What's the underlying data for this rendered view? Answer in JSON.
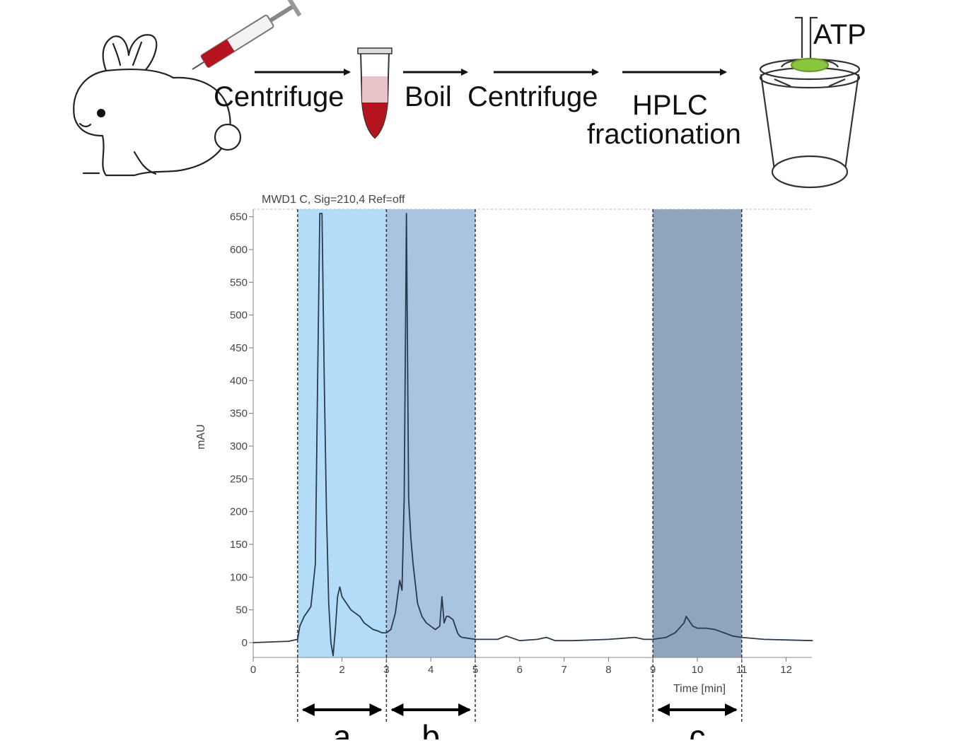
{
  "workflow": {
    "steps": [
      "Centrifuge",
      "Boil",
      "Centrifuge",
      "HPLC",
      "fractionation"
    ],
    "product_label": "ATP",
    "colors": {
      "blood": "#b3141e",
      "plasma": "#e8c4c8",
      "atp_green": "#8cc63f"
    }
  },
  "chart_data": {
    "type": "line",
    "title": "MWD1 C, Sig=210,4 Ref=off",
    "xlabel": "Time [min]",
    "ylabel": "mAU",
    "xlim": [
      0,
      12.6
    ],
    "ylim": [
      -20,
      655
    ],
    "x_ticks": [
      0,
      1,
      2,
      3,
      4,
      5,
      6,
      7,
      8,
      9,
      10,
      11,
      12
    ],
    "y_ticks": [
      0,
      50,
      100,
      150,
      200,
      250,
      300,
      350,
      400,
      450,
      500,
      550,
      600,
      650
    ],
    "grid": false,
    "series": [
      {
        "color": "#2a3a4a",
        "x": [
          0,
          0.8,
          1.0,
          1.05,
          1.15,
          1.2,
          1.3,
          1.4,
          1.45,
          1.5,
          1.55,
          1.6,
          1.65,
          1.7,
          1.75,
          1.8,
          1.85,
          1.9,
          1.95,
          2.0,
          2.1,
          2.2,
          2.3,
          2.4,
          2.5,
          2.6,
          2.7,
          2.8,
          2.9,
          3.0,
          3.1,
          3.2,
          3.3,
          3.35,
          3.4,
          3.45,
          3.5,
          3.55,
          3.6,
          3.7,
          3.8,
          3.9,
          4.0,
          4.1,
          4.2,
          4.25,
          4.3,
          4.35,
          4.4,
          4.5,
          4.6,
          4.65,
          4.7,
          4.8,
          5.0,
          5.2,
          5.5,
          5.7,
          6.0,
          6.4,
          6.6,
          6.8,
          7.2,
          8.0,
          8.6,
          8.8,
          9.0,
          9.3,
          9.5,
          9.7,
          9.75,
          9.8,
          9.9,
          10.0,
          10.2,
          10.4,
          10.6,
          10.8,
          11.0,
          11.5,
          12.6
        ],
        "y": [
          0,
          2,
          5,
          25,
          40,
          45,
          55,
          120,
          400,
          655,
          655,
          400,
          200,
          60,
          0,
          -20,
          20,
          70,
          85,
          70,
          60,
          50,
          45,
          40,
          30,
          25,
          20,
          18,
          15,
          15,
          20,
          45,
          95,
          80,
          220,
          655,
          220,
          160,
          120,
          60,
          40,
          30,
          25,
          20,
          25,
          70,
          30,
          40,
          40,
          35,
          15,
          10,
          8,
          7,
          5,
          5,
          5,
          10,
          3,
          5,
          8,
          3,
          3,
          5,
          8,
          5,
          5,
          8,
          15,
          30,
          40,
          35,
          25,
          22,
          22,
          20,
          15,
          10,
          8,
          5,
          3
        ]
      }
    ],
    "fractions": [
      {
        "label": "a",
        "x_start": 1,
        "x_end": 3,
        "color": "#b3dcf8"
      },
      {
        "label": "b",
        "x_start": 3,
        "x_end": 5,
        "color": "#a9c4e0"
      },
      {
        "label": "c",
        "x_start": 9,
        "x_end": 11,
        "color": "#8fa5bd"
      }
    ]
  }
}
